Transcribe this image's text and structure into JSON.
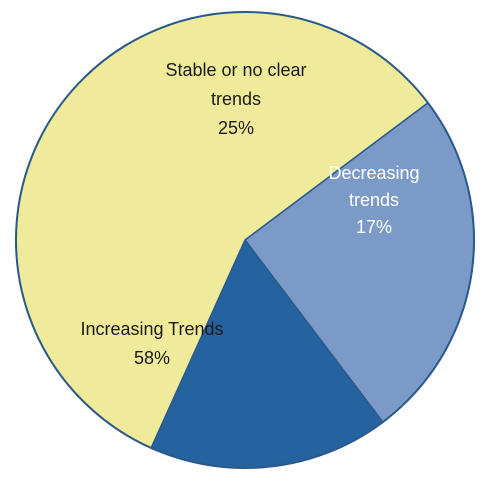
{
  "chart_data": {
    "type": "pie",
    "slices": [
      {
        "label_lines": [
          "Stable or no clear",
          "trends"
        ],
        "value_text": "25%",
        "value": 25,
        "color": "#7b9ac7"
      },
      {
        "label_lines": [
          "Decreasing",
          "trends"
        ],
        "value_text": "17%",
        "value": 17,
        "color": "#2563a0"
      },
      {
        "label_lines": [
          "Increasing Trends"
        ],
        "value_text": "58%",
        "value": 58,
        "color": "#f0eb9a"
      }
    ],
    "legend": "none"
  }
}
